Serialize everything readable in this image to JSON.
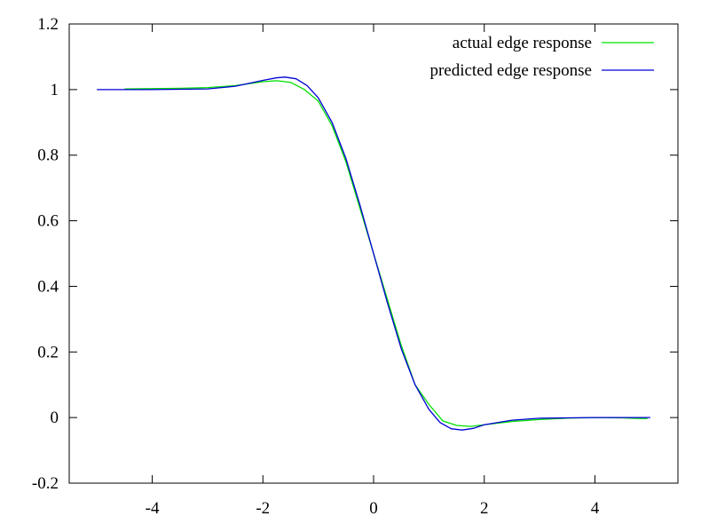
{
  "chart_data": {
    "type": "line",
    "title": "",
    "xlabel": "",
    "ylabel": "",
    "xlim": [
      -5.5,
      5.5
    ],
    "ylim": [
      -0.2,
      1.2
    ],
    "x_ticks": [
      -4,
      -2,
      0,
      2,
      4
    ],
    "y_ticks": [
      -0.2,
      0,
      0.2,
      0.4,
      0.6,
      0.8,
      1,
      1.2
    ],
    "x_tick_labels": [
      "-4",
      "-2",
      "0",
      "2",
      "4"
    ],
    "y_tick_labels": [
      "-0.2",
      "0",
      "0.2",
      "0.4",
      "0.6",
      "0.8",
      "1",
      "1.2"
    ],
    "grid": false,
    "legend_position": "top-right",
    "series": [
      {
        "name": "actual edge response",
        "color": "#00e000",
        "points": [
          [
            -4.5,
            1.002
          ],
          [
            -4.0,
            1.003
          ],
          [
            -3.5,
            1.004
          ],
          [
            -3.0,
            1.006
          ],
          [
            -2.5,
            1.012
          ],
          [
            -2.0,
            1.024
          ],
          [
            -1.75,
            1.027
          ],
          [
            -1.5,
            1.022
          ],
          [
            -1.25,
            1.0
          ],
          [
            -1.0,
            0.965
          ],
          [
            -0.75,
            0.89
          ],
          [
            -0.5,
            0.78
          ],
          [
            -0.25,
            0.64
          ],
          [
            0.0,
            0.5
          ],
          [
            0.25,
            0.36
          ],
          [
            0.5,
            0.22
          ],
          [
            0.75,
            0.1
          ],
          [
            1.0,
            0.04
          ],
          [
            1.25,
            -0.01
          ],
          [
            1.5,
            -0.024
          ],
          [
            1.75,
            -0.027
          ],
          [
            2.0,
            -0.022
          ],
          [
            2.5,
            -0.012
          ],
          [
            3.0,
            -0.006
          ],
          [
            3.5,
            -0.002
          ],
          [
            4.0,
            0.0
          ],
          [
            4.5,
            -0.001
          ],
          [
            4.8,
            -0.003
          ],
          [
            4.95,
            -0.003
          ]
        ]
      },
      {
        "name": "predicted edge response",
        "color": "#0000d8",
        "points": [
          [
            -5.0,
            1.0
          ],
          [
            -4.5,
            1.0
          ],
          [
            -4.0,
            1.0
          ],
          [
            -3.5,
            1.001
          ],
          [
            -3.0,
            1.002
          ],
          [
            -2.5,
            1.01
          ],
          [
            -2.0,
            1.028
          ],
          [
            -1.75,
            1.036
          ],
          [
            -1.6,
            1.038
          ],
          [
            -1.4,
            1.033
          ],
          [
            -1.2,
            1.012
          ],
          [
            -1.0,
            0.975
          ],
          [
            -0.75,
            0.9
          ],
          [
            -0.5,
            0.79
          ],
          [
            -0.25,
            0.65
          ],
          [
            0.0,
            0.5
          ],
          [
            0.25,
            0.35
          ],
          [
            0.5,
            0.21
          ],
          [
            0.75,
            0.1
          ],
          [
            1.0,
            0.025
          ],
          [
            1.2,
            -0.015
          ],
          [
            1.4,
            -0.034
          ],
          [
            1.6,
            -0.038
          ],
          [
            1.8,
            -0.033
          ],
          [
            2.0,
            -0.022
          ],
          [
            2.5,
            -0.008
          ],
          [
            3.0,
            -0.002
          ],
          [
            3.5,
            -0.001
          ],
          [
            4.0,
            0.0
          ],
          [
            4.5,
            0.0
          ],
          [
            5.0,
            0.0
          ]
        ]
      }
    ]
  }
}
